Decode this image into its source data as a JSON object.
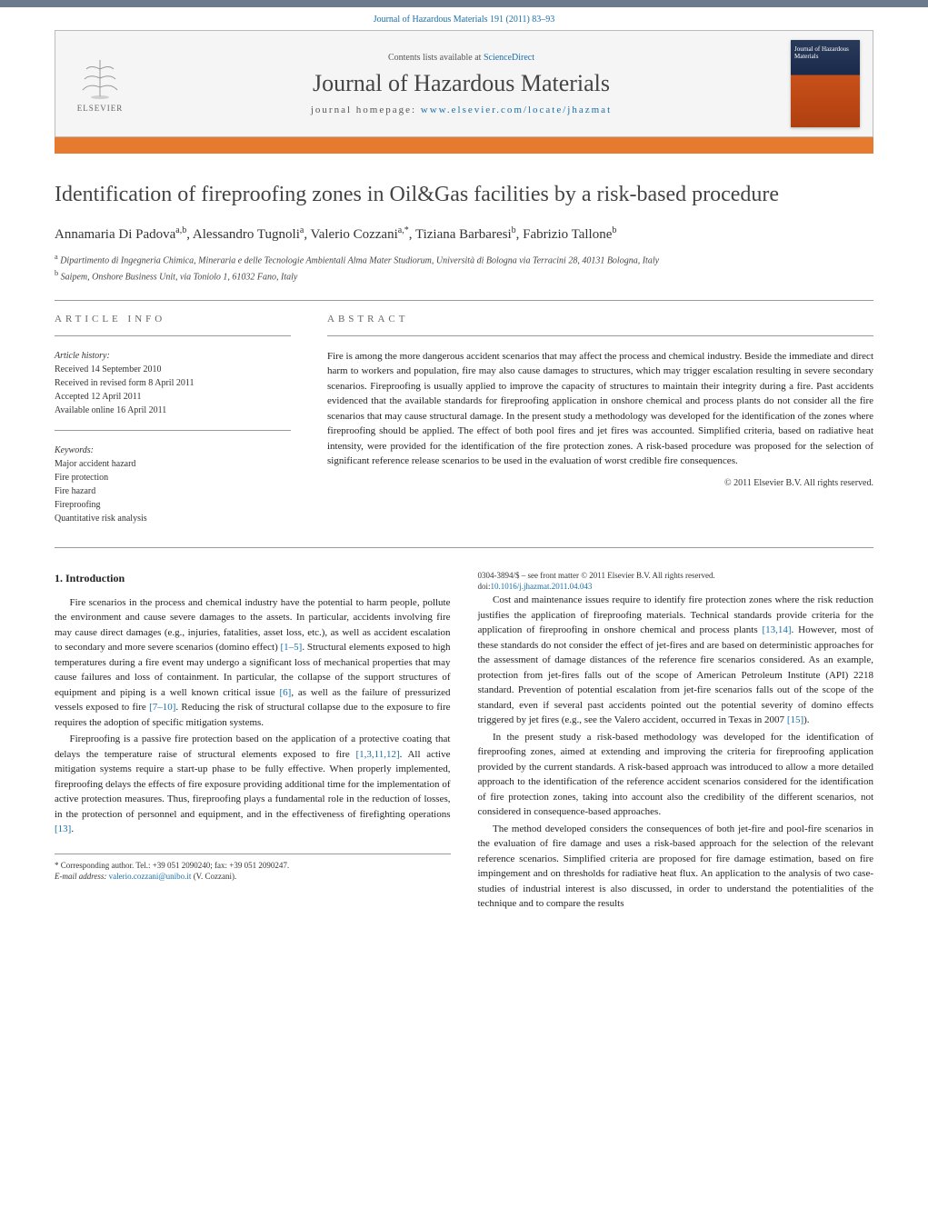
{
  "citation": {
    "prefix": "Journal of Hazardous Materials 191 (2011) 83–93",
    "link_text": "Journal of Hazardous Materials 191 (2011) 83–93"
  },
  "header": {
    "contents_prefix": "Contents lists available at ",
    "contents_link": "ScienceDirect",
    "journal_name": "Journal of Hazardous Materials",
    "homepage_prefix": "journal homepage: ",
    "homepage_link": "www.elsevier.com/locate/jhazmat",
    "elsevier_label": "ELSEVIER",
    "cover_text": "Journal of\nHazardous\nMaterials"
  },
  "article": {
    "title": "Identification of fireproofing zones in Oil&Gas facilities by a risk-based procedure",
    "authors_html": "Annamaria Di Padova<sup>a,b</sup>, Alessandro Tugnoli<sup>a</sup>, Valerio Cozzani<sup>a,*</sup>, Tiziana Barbaresi<sup>b</sup>, Fabrizio Tallone<sup>b</sup>",
    "affiliations": {
      "a": "Dipartimento di Ingegneria Chimica, Mineraria e delle Tecnologie Ambientali Alma Mater Studiorum, Università di Bologna via Terracini 28, 40131 Bologna, Italy",
      "b": "Saipem, Onshore Business Unit, via Toniolo 1, 61032 Fano, Italy"
    }
  },
  "info": {
    "label": "ARTICLE INFO",
    "history_head": "Article history:",
    "history": [
      "Received 14 September 2010",
      "Received in revised form 8 April 2011",
      "Accepted 12 April 2011",
      "Available online 16 April 2011"
    ],
    "keywords_head": "Keywords:",
    "keywords": [
      "Major accident hazard",
      "Fire protection",
      "Fire hazard",
      "Fireproofing",
      "Quantitative risk analysis"
    ]
  },
  "abstract": {
    "label": "ABSTRACT",
    "text": "Fire is among the more dangerous accident scenarios that may affect the process and chemical industry. Beside the immediate and direct harm to workers and population, fire may also cause damages to structures, which may trigger escalation resulting in severe secondary scenarios. Fireproofing is usually applied to improve the capacity of structures to maintain their integrity during a fire. Past accidents evidenced that the available standards for fireproofing application in onshore chemical and process plants do not consider all the fire scenarios that may cause structural damage. In the present study a methodology was developed for the identification of the zones where fireproofing should be applied. The effect of both pool fires and jet fires was accounted. Simplified criteria, based on radiative heat intensity, were provided for the identification of the fire protection zones. A risk-based procedure was proposed for the selection of significant reference release scenarios to be used in the evaluation of worst credible fire consequences.",
    "copyright": "© 2011 Elsevier B.V. All rights reserved."
  },
  "body": {
    "section1_title": "1. Introduction",
    "p1": "Fire scenarios in the process and chemical industry have the potential to harm people, pollute the environment and cause severe damages to the assets. In particular, accidents involving fire may cause direct damages (e.g., injuries, fatalities, asset loss, etc.), as well as accident escalation to secondary and more severe scenarios (domino effect) [1–5]. Structural elements exposed to high temperatures during a fire event may undergo a significant loss of mechanical properties that may cause failures and loss of containment. In particular, the collapse of the support structures of equipment and piping is a well known critical issue [6], as well as the failure of pressurized vessels exposed to fire [7–10]. Reducing the risk of structural collapse due to the exposure to fire requires the adoption of specific mitigation systems.",
    "p2": "Fireproofing is a passive fire protection based on the application of a protective coating that delays the temperature raise of structural elements exposed to fire [1,3,11,12]. All active mitigation systems require a start-up phase to be fully effective. When properly implemented, fireproofing delays the effects of fire exposure providing additional time for the implementation of active protection measures. Thus, fireproofing plays a fundamental role in the reduction of losses, in the protection of personnel and equipment, and in the effectiveness of firefighting operations [13].",
    "p3": "Cost and maintenance issues require to identify fire protection zones where the risk reduction justifies the application of fireproofing materials. Technical standards provide criteria for the application of fireproofing in onshore chemical and process plants [13,14]. However, most of these standards do not consider the effect of jet-fires and are based on deterministic approaches for the assessment of damage distances of the reference fire scenarios considered. As an example, protection from jet-fires falls out of the scope of American Petroleum Institute (API) 2218 standard. Prevention of potential escalation from jet-fire scenarios falls out of the scope of the standard, even if several past accidents pointed out the potential severity of domino effects triggered by jet fires (e.g., see the Valero accident, occurred in Texas in 2007 [15]).",
    "p4": "In the present study a risk-based methodology was developed for the identification of fireproofing zones, aimed at extending and improving the criteria for fireproofing application provided by the current standards. A risk-based approach was introduced to allow a more detailed approach to the identification of the reference accident scenarios considered for the identification of fire protection zones, taking into account also the credibility of the different scenarios, not considered in consequence-based approaches.",
    "p5": "The method developed considers the consequences of both jet-fire and pool-fire scenarios in the evaluation of fire damage and uses a risk-based approach for the selection of the relevant reference scenarios. Simplified criteria are proposed for fire damage estimation, based on fire impingement and on thresholds for radiative heat flux. An application to the analysis of two case-studies of industrial interest is also discussed, in order to understand the potentialities of the technique and to compare the results"
  },
  "footnote": {
    "marker": "*",
    "text": "Corresponding author. Tel.: +39 051 2090240; fax: +39 051 2090247.",
    "email_label": "E-mail address:",
    "email": "valerio.cozzani@unibo.it",
    "email_suffix": "(V. Cozzani)."
  },
  "bottom": {
    "line1": "0304-3894/$ – see front matter © 2011 Elsevier B.V. All rights reserved.",
    "doi_prefix": "doi:",
    "doi": "10.1016/j.jhazmat.2011.04.043"
  },
  "refs": {
    "r1_5": "[1–5]",
    "r6": "[6]",
    "r7_10": "[7–10]",
    "r1_3_11_12": "[1,3,11,12]",
    "r13a": "[13]",
    "r13_14": "[13,14]",
    "r15": "[15]"
  },
  "colors": {
    "topbar": "#6b7a8f",
    "orange": "#e67a2e",
    "link": "#1a6fa8",
    "text": "#333333",
    "border": "#999999"
  }
}
